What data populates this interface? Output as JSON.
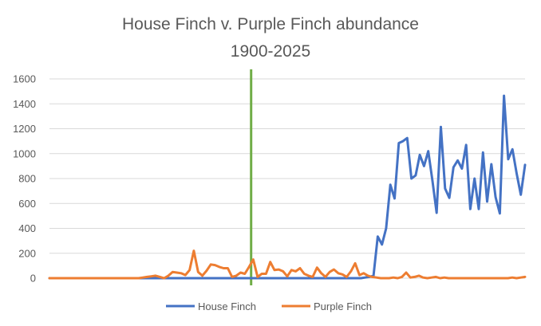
{
  "chart_data": {
    "type": "line",
    "title": "House Finch v. Purple Finch abundance",
    "subtitle": "1900-2025",
    "xlabel": "",
    "ylabel": "",
    "x_start_year": 1900,
    "x_end_year": 2025,
    "ylim": [
      0,
      1600
    ],
    "yticks": [
      "0",
      "200",
      "400",
      "600",
      "800",
      "1000",
      "1200",
      "1400",
      "1600"
    ],
    "grid": true,
    "legend_position": "bottom",
    "marker_line": {
      "year": 1953,
      "color": "#70ad47"
    },
    "series": [
      {
        "name": "House Finch",
        "color": "#4472c4",
        "values": [
          0,
          0,
          0,
          0,
          0,
          0,
          0,
          0,
          0,
          0,
          0,
          0,
          0,
          0,
          0,
          0,
          0,
          0,
          0,
          0,
          0,
          0,
          0,
          0,
          0,
          0,
          0,
          0,
          0,
          0,
          0,
          0,
          0,
          0,
          0,
          0,
          0,
          0,
          0,
          0,
          0,
          0,
          0,
          0,
          0,
          0,
          0,
          0,
          0,
          0,
          0,
          0,
          0,
          0,
          0,
          0,
          0,
          0,
          0,
          0,
          0,
          0,
          0,
          0,
          0,
          0,
          0,
          0,
          0,
          0,
          0,
          0,
          0,
          0,
          0,
          5,
          10,
          20,
          335,
          270,
          400,
          750,
          640,
          1085,
          1100,
          1125,
          800,
          825,
          990,
          900,
          1020,
          780,
          525,
          1215,
          720,
          645,
          890,
          945,
          880,
          1070,
          555,
          800,
          555,
          1010,
          615,
          915,
          650,
          520,
          1465,
          955,
          1035,
          840,
          670,
          910
        ]
      },
      {
        "name": "Purple Finch",
        "color": "#ed7d31",
        "values": [
          0,
          0,
          0,
          0,
          0,
          0,
          0,
          0,
          0,
          0,
          0,
          0,
          0,
          0,
          0,
          0,
          0,
          0,
          0,
          0,
          0,
          0,
          5,
          10,
          15,
          20,
          10,
          0,
          20,
          50,
          45,
          40,
          25,
          65,
          220,
          50,
          20,
          60,
          110,
          105,
          90,
          80,
          80,
          10,
          20,
          45,
          35,
          90,
          150,
          10,
          35,
          35,
          130,
          65,
          70,
          55,
          15,
          65,
          55,
          80,
          35,
          20,
          10,
          85,
          40,
          10,
          50,
          70,
          40,
          30,
          10,
          55,
          120,
          25,
          40,
          20,
          10,
          5,
          0,
          0,
          0,
          5,
          0,
          10,
          45,
          5,
          10,
          20,
          5,
          0,
          5,
          10,
          0,
          5,
          0,
          0,
          0,
          0,
          0,
          0,
          0,
          0,
          0,
          0,
          0,
          0,
          0,
          0,
          0,
          5,
          0,
          5,
          10
        ]
      }
    ]
  }
}
